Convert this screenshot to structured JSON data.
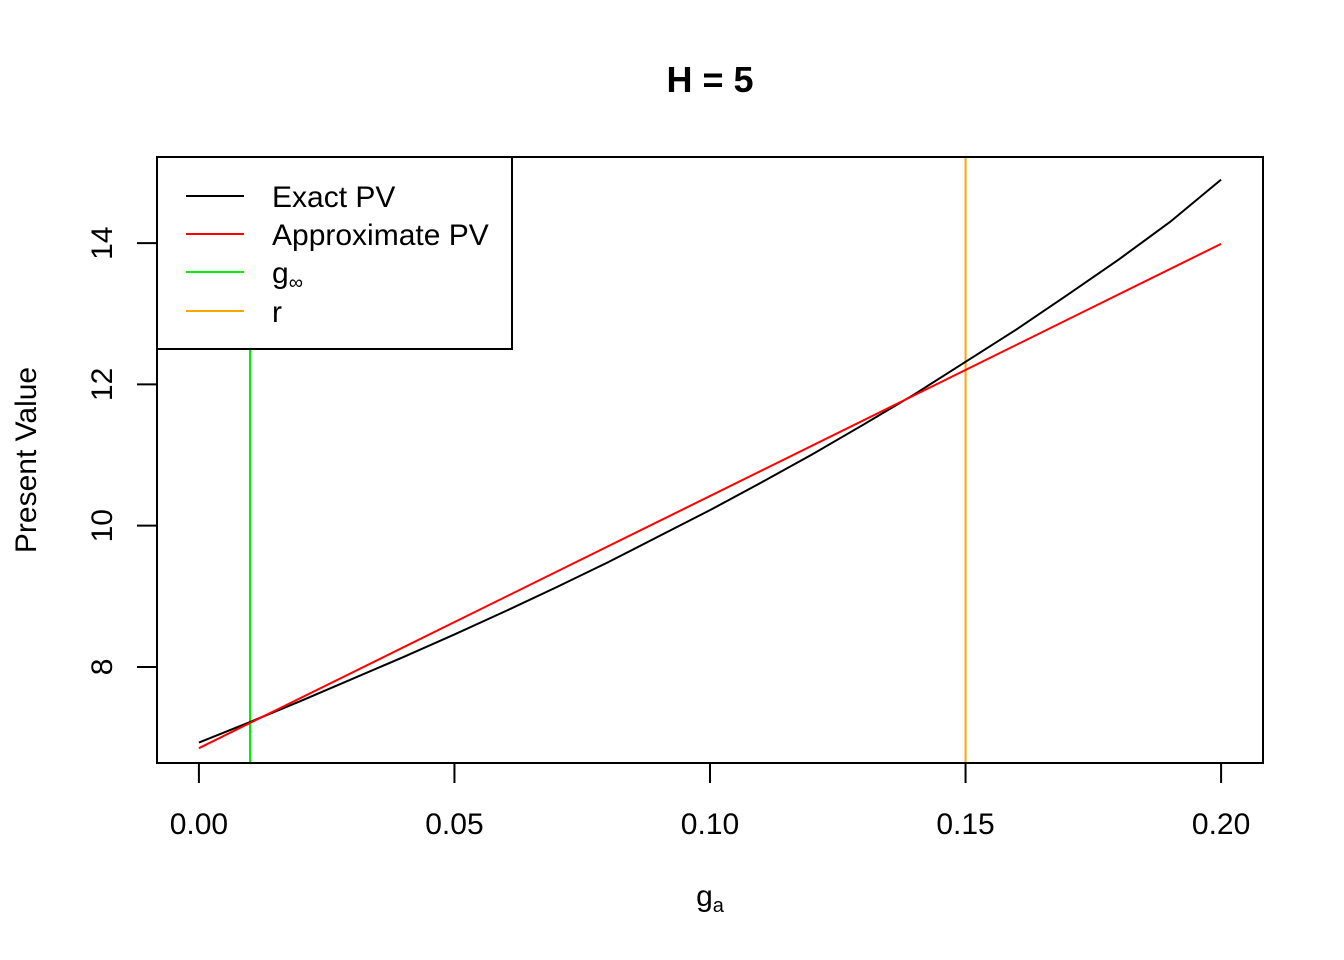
{
  "chart_data": {
    "type": "line",
    "title": "H = 5",
    "xlabel": {
      "base": "g",
      "sub": "a"
    },
    "ylabel": "Present Value",
    "xlim": [
      -0.0082,
      0.2082
    ],
    "ylim": [
      6.64,
      15.22
    ],
    "x_ticks": [
      0.0,
      0.05,
      0.1,
      0.15,
      0.2
    ],
    "x_tick_labels": [
      "0.00",
      "0.05",
      "0.10",
      "0.15",
      "0.20"
    ],
    "y_ticks": [
      8,
      10,
      12,
      14
    ],
    "y_tick_labels": [
      "8",
      "10",
      "12",
      "14"
    ],
    "grid": false,
    "legend_position": "top-left",
    "series": [
      {
        "name": "Exact PV",
        "color": "#000000",
        "x": [
          0.0,
          0.01,
          0.02,
          0.03,
          0.04,
          0.05,
          0.06,
          0.07,
          0.08,
          0.09,
          0.1,
          0.11,
          0.12,
          0.13,
          0.14,
          0.15,
          0.16,
          0.17,
          0.18,
          0.19,
          0.2
        ],
        "y": [
          6.93,
          7.22,
          7.52,
          7.83,
          8.14,
          8.46,
          8.79,
          9.13,
          9.48,
          9.85,
          10.22,
          10.61,
          11.01,
          11.43,
          11.86,
          12.32,
          12.78,
          13.27,
          13.77,
          14.3,
          14.9
        ]
      },
      {
        "name": "Approximate PV",
        "color": "#ff0000",
        "x": [
          0.0,
          0.2
        ],
        "y": [
          6.85,
          13.99
        ]
      }
    ],
    "vlines": [
      {
        "name": "g∞",
        "label_base": "g",
        "label_sub": "∞",
        "color": "#00ee00",
        "x": 0.01
      },
      {
        "name": "r",
        "label_base": "r",
        "label_sub": "",
        "color": "#ffa500",
        "x": 0.15
      }
    ]
  }
}
